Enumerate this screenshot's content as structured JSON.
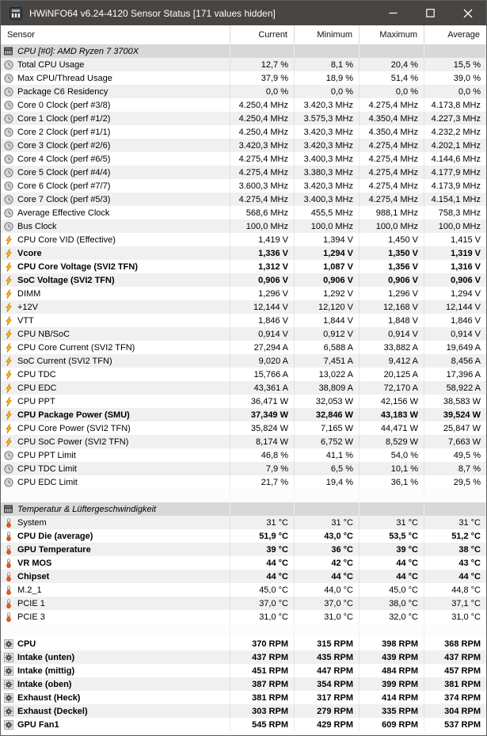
{
  "window": {
    "title": "HWiNFO64 v6.24-4120 Sensor Status [171 values hidden]",
    "controls": [
      "minimize",
      "maximize",
      "close"
    ]
  },
  "columns": [
    "Sensor",
    "Current",
    "Minimum",
    "Maximum",
    "Average"
  ],
  "colors": {
    "titlebar_bg": "#484543",
    "title_text": "#ffffff",
    "row_alt_bg": "#f0f0f0",
    "section_bg": "#d8d8d8",
    "bolt_yellow": "#ffc20e",
    "thermo_orange": "#e8591d",
    "fan_dark": "#3a3a3a"
  },
  "sections": [
    {
      "type": "header",
      "icon": "chip",
      "label": "CPU [#0]: AMD Ryzen 7 3700X"
    },
    {
      "type": "row",
      "icon": "clock",
      "bold": false,
      "label": "Total CPU Usage",
      "values": [
        "12,7 %",
        "8,1 %",
        "20,4 %",
        "15,5 %"
      ]
    },
    {
      "type": "row",
      "icon": "clock",
      "bold": false,
      "label": "Max CPU/Thread Usage",
      "values": [
        "37,9 %",
        "18,9 %",
        "51,4 %",
        "39,0 %"
      ]
    },
    {
      "type": "row",
      "icon": "clock",
      "bold": false,
      "label": "Package C6 Residency",
      "values": [
        "0,0 %",
        "0,0 %",
        "0,0 %",
        "0,0 %"
      ]
    },
    {
      "type": "row",
      "icon": "clock",
      "bold": false,
      "label": "Core 0 Clock (perf #3/8)",
      "values": [
        "4.250,4 MHz",
        "3.420,3 MHz",
        "4.275,4 MHz",
        "4.173,8 MHz"
      ]
    },
    {
      "type": "row",
      "icon": "clock",
      "bold": false,
      "label": "Core 1 Clock (perf #1/2)",
      "values": [
        "4.250,4 MHz",
        "3.575,3 MHz",
        "4.350,4 MHz",
        "4.227,3 MHz"
      ]
    },
    {
      "type": "row",
      "icon": "clock",
      "bold": false,
      "label": "Core 2 Clock (perf #1/1)",
      "values": [
        "4.250,4 MHz",
        "3.420,3 MHz",
        "4.350,4 MHz",
        "4.232,2 MHz"
      ]
    },
    {
      "type": "row",
      "icon": "clock",
      "bold": false,
      "label": "Core 3 Clock (perf #2/6)",
      "values": [
        "3.420,3 MHz",
        "3.420,3 MHz",
        "4.275,4 MHz",
        "4.202,1 MHz"
      ]
    },
    {
      "type": "row",
      "icon": "clock",
      "bold": false,
      "label": "Core 4 Clock (perf #6/5)",
      "values": [
        "4.275,4 MHz",
        "3.400,3 MHz",
        "4.275,4 MHz",
        "4.144,6 MHz"
      ]
    },
    {
      "type": "row",
      "icon": "clock",
      "bold": false,
      "label": "Core 5 Clock (perf #4/4)",
      "values": [
        "4.275,4 MHz",
        "3.380,3 MHz",
        "4.275,4 MHz",
        "4.177,9 MHz"
      ]
    },
    {
      "type": "row",
      "icon": "clock",
      "bold": false,
      "label": "Core 6 Clock (perf #7/7)",
      "values": [
        "3.600,3 MHz",
        "3.420,3 MHz",
        "4.275,4 MHz",
        "4.173,9 MHz"
      ]
    },
    {
      "type": "row",
      "icon": "clock",
      "bold": false,
      "label": "Core 7 Clock (perf #5/3)",
      "values": [
        "4.275,4 MHz",
        "3.400,3 MHz",
        "4.275,4 MHz",
        "4.154,1 MHz"
      ]
    },
    {
      "type": "row",
      "icon": "clock",
      "bold": false,
      "label": "Average Effective Clock",
      "values": [
        "568,6 MHz",
        "455,5 MHz",
        "988,1 MHz",
        "758,3 MHz"
      ]
    },
    {
      "type": "row",
      "icon": "clock",
      "bold": false,
      "label": "Bus Clock",
      "values": [
        "100,0 MHz",
        "100,0 MHz",
        "100,0 MHz",
        "100,0 MHz"
      ]
    },
    {
      "type": "row",
      "icon": "bolt",
      "bold": false,
      "label": "CPU Core VID (Effective)",
      "values": [
        "1,419 V",
        "1,394 V",
        "1,450 V",
        "1,415 V"
      ]
    },
    {
      "type": "row",
      "icon": "bolt",
      "bold": true,
      "label": "Vcore",
      "values": [
        "1,336 V",
        "1,294 V",
        "1,350 V",
        "1,319 V"
      ]
    },
    {
      "type": "row",
      "icon": "bolt",
      "bold": true,
      "label": "CPU Core Voltage (SVI2 TFN)",
      "values": [
        "1,312 V",
        "1,087 V",
        "1,356 V",
        "1,316 V"
      ]
    },
    {
      "type": "row",
      "icon": "bolt",
      "bold": true,
      "label": "SoC Voltage (SVI2 TFN)",
      "values": [
        "0,906 V",
        "0,906 V",
        "0,906 V",
        "0,906 V"
      ]
    },
    {
      "type": "row",
      "icon": "bolt",
      "bold": false,
      "label": "DIMM",
      "values": [
        "1,296 V",
        "1,292 V",
        "1,296 V",
        "1,294 V"
      ]
    },
    {
      "type": "row",
      "icon": "bolt",
      "bold": false,
      "label": "+12V",
      "values": [
        "12,144 V",
        "12,120 V",
        "12,168 V",
        "12,144 V"
      ]
    },
    {
      "type": "row",
      "icon": "bolt",
      "bold": false,
      "label": "VTT",
      "values": [
        "1,846 V",
        "1,844 V",
        "1,848 V",
        "1,846 V"
      ]
    },
    {
      "type": "row",
      "icon": "bolt",
      "bold": false,
      "label": "CPU NB/SoC",
      "values": [
        "0,914 V",
        "0,912 V",
        "0,914 V",
        "0,914 V"
      ]
    },
    {
      "type": "row",
      "icon": "bolt",
      "bold": false,
      "label": "CPU Core Current (SVI2 TFN)",
      "values": [
        "27,294 A",
        "6,588 A",
        "33,882 A",
        "19,649 A"
      ]
    },
    {
      "type": "row",
      "icon": "bolt",
      "bold": false,
      "label": "SoC Current (SVI2 TFN)",
      "values": [
        "9,020 A",
        "7,451 A",
        "9,412 A",
        "8,456 A"
      ]
    },
    {
      "type": "row",
      "icon": "bolt",
      "bold": false,
      "label": "CPU TDC",
      "values": [
        "15,766 A",
        "13,022 A",
        "20,125 A",
        "17,396 A"
      ]
    },
    {
      "type": "row",
      "icon": "bolt",
      "bold": false,
      "label": "CPU EDC",
      "values": [
        "43,361 A",
        "38,809 A",
        "72,170 A",
        "58,922 A"
      ]
    },
    {
      "type": "row",
      "icon": "bolt",
      "bold": false,
      "label": "CPU PPT",
      "values": [
        "36,471 W",
        "32,053 W",
        "42,156 W",
        "38,583 W"
      ]
    },
    {
      "type": "row",
      "icon": "bolt",
      "bold": true,
      "label": "CPU Package Power (SMU)",
      "values": [
        "37,349 W",
        "32,846 W",
        "43,183 W",
        "39,524 W"
      ]
    },
    {
      "type": "row",
      "icon": "bolt",
      "bold": false,
      "label": "CPU Core Power (SVI2 TFN)",
      "values": [
        "35,824 W",
        "7,165 W",
        "44,471 W",
        "25,847 W"
      ]
    },
    {
      "type": "row",
      "icon": "bolt",
      "bold": false,
      "label": "CPU SoC Power (SVI2 TFN)",
      "values": [
        "8,174 W",
        "6,752 W",
        "8,529 W",
        "7,663 W"
      ]
    },
    {
      "type": "row",
      "icon": "clock",
      "bold": false,
      "label": "CPU PPT Limit",
      "values": [
        "46,8 %",
        "41,1 %",
        "54,0 %",
        "49,5 %"
      ]
    },
    {
      "type": "row",
      "icon": "clock",
      "bold": false,
      "label": "CPU TDC Limit",
      "values": [
        "7,9 %",
        "6,5 %",
        "10,1 %",
        "8,7 %"
      ]
    },
    {
      "type": "row",
      "icon": "clock",
      "bold": false,
      "label": "CPU EDC Limit",
      "values": [
        "21,7 %",
        "19,4 %",
        "36,1 %",
        "29,5 %"
      ]
    },
    {
      "type": "spacer"
    },
    {
      "type": "header",
      "icon": "chip",
      "label": "Temperatur & Lüftergeschwindigkeit"
    },
    {
      "type": "row",
      "icon": "thermometer",
      "bold": false,
      "label": "System",
      "values": [
        "31 °C",
        "31 °C",
        "31 °C",
        "31 °C"
      ]
    },
    {
      "type": "row",
      "icon": "thermometer",
      "bold": true,
      "label": "CPU Die (average)",
      "values": [
        "51,9 °C",
        "43,0 °C",
        "53,5 °C",
        "51,2 °C"
      ]
    },
    {
      "type": "row",
      "icon": "thermometer",
      "bold": true,
      "label": "GPU Temperature",
      "values": [
        "39 °C",
        "36 °C",
        "39 °C",
        "38 °C"
      ]
    },
    {
      "type": "row",
      "icon": "thermometer",
      "bold": true,
      "label": "VR MOS",
      "values": [
        "44 °C",
        "42 °C",
        "44 °C",
        "43 °C"
      ]
    },
    {
      "type": "row",
      "icon": "thermometer",
      "bold": true,
      "label": "Chipset",
      "values": [
        "44 °C",
        "44 °C",
        "44 °C",
        "44 °C"
      ]
    },
    {
      "type": "row",
      "icon": "thermometer",
      "bold": false,
      "label": "M.2_1",
      "values": [
        "45,0 °C",
        "44,0 °C",
        "45,0 °C",
        "44,8 °C"
      ]
    },
    {
      "type": "row",
      "icon": "thermometer",
      "bold": false,
      "label": "PCIE 1",
      "values": [
        "37,0 °C",
        "37,0 °C",
        "38,0 °C",
        "37,1 °C"
      ]
    },
    {
      "type": "row",
      "icon": "thermometer",
      "bold": false,
      "label": "PCIE 3",
      "values": [
        "31,0 °C",
        "31,0 °C",
        "32,0 °C",
        "31,0 °C"
      ]
    },
    {
      "type": "spacer"
    },
    {
      "type": "row",
      "icon": "fan",
      "bold": true,
      "label": "CPU",
      "values": [
        "370 RPM",
        "315 RPM",
        "398 RPM",
        "368 RPM"
      ]
    },
    {
      "type": "row",
      "icon": "fan",
      "bold": true,
      "label": "Intake (unten)",
      "values": [
        "437 RPM",
        "435 RPM",
        "439 RPM",
        "437 RPM"
      ]
    },
    {
      "type": "row",
      "icon": "fan",
      "bold": true,
      "label": "Intake (mittig)",
      "values": [
        "451 RPM",
        "447 RPM",
        "484 RPM",
        "457 RPM"
      ]
    },
    {
      "type": "row",
      "icon": "fan",
      "bold": true,
      "label": "Intake (oben)",
      "values": [
        "387 RPM",
        "354 RPM",
        "399 RPM",
        "381 RPM"
      ]
    },
    {
      "type": "row",
      "icon": "fan",
      "bold": true,
      "label": "Exhaust (Heck)",
      "values": [
        "381 RPM",
        "317 RPM",
        "414 RPM",
        "374 RPM"
      ]
    },
    {
      "type": "row",
      "icon": "fan",
      "bold": true,
      "label": "Exhaust (Deckel)",
      "values": [
        "303 RPM",
        "279 RPM",
        "335 RPM",
        "304 RPM"
      ]
    },
    {
      "type": "row",
      "icon": "fan",
      "bold": true,
      "label": "GPU Fan1",
      "values": [
        "545 RPM",
        "429 RPM",
        "609 RPM",
        "537 RPM"
      ]
    }
  ]
}
